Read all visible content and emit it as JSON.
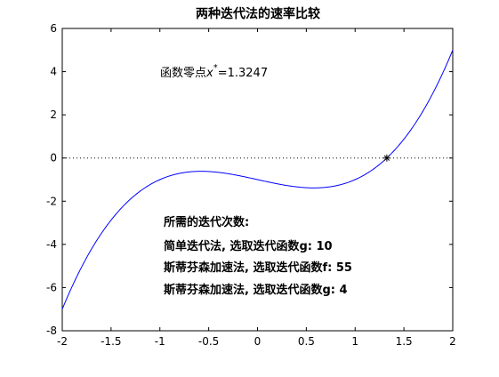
{
  "chart_data": {
    "type": "line",
    "title": "两种迭代法的速率比较",
    "xlim": [
      -2,
      2
    ],
    "ylim": [
      -8,
      6
    ],
    "x_ticks": [
      -2,
      -1.5,
      -1,
      -0.5,
      0,
      0.5,
      1,
      1.5,
      2
    ],
    "x_tick_labels": [
      "-2",
      "-1.5",
      "-1",
      "-0.5",
      "0",
      "0.5",
      "1",
      "1.5",
      "2"
    ],
    "y_ticks": [
      -8,
      -6,
      -4,
      -2,
      0,
      2,
      4,
      6
    ],
    "y_tick_labels": [
      "-8",
      "-6",
      "-4",
      "-2",
      "0",
      "2",
      "4",
      "6"
    ],
    "grid": false,
    "series": [
      {
        "function": "x^3 - x - 1",
        "x_range": [
          -2,
          2
        ],
        "color": "#0000ff",
        "style": "solid"
      }
    ],
    "reference_line": {
      "y": 0,
      "color": "#000000",
      "style": "dotted"
    },
    "root_marker": {
      "x": 1.3247,
      "y": 0,
      "marker": "*",
      "color": "#000000"
    },
    "annotations": {
      "root_label_prefix": "函数零点",
      "root_label_var": "x",
      "root_label_sup": "*",
      "root_label_value": "=1.3247",
      "iterations_heading": "所需的迭代次数:",
      "line1": "简单迭代法, 选取迭代函数g: 10",
      "line2": "斯蒂芬森加速法, 选取迭代函数f: 55",
      "line3": "斯蒂芬森加速法, 选取迭代函数g: 4"
    }
  }
}
